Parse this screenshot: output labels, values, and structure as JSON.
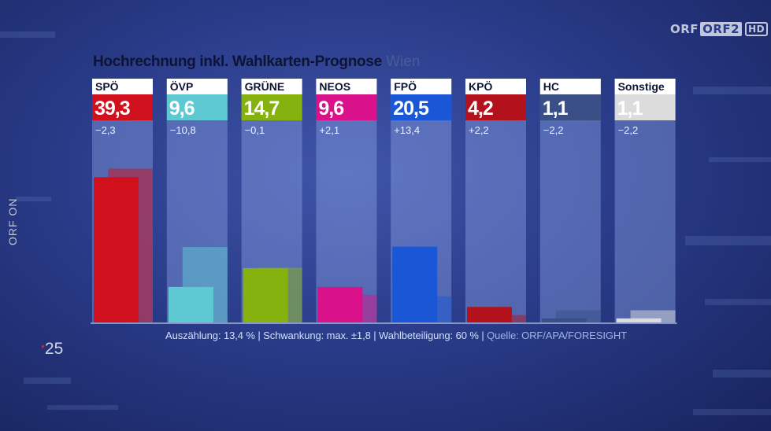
{
  "broadcast": {
    "channel_logo": "ORF2",
    "hd_badge": "HD",
    "side_brand": "ORF ON",
    "year_mark": "25"
  },
  "header": {
    "title": "Hochrechnung inkl. Wahlkarten-Prognose",
    "region": "Wien"
  },
  "footer": {
    "counting": "Auszählung: 13,4 %",
    "fluctuation": "Schwankung: max. ±1,8",
    "turnout": "Wahlbeteiligung: 60 %",
    "separator": "|",
    "source": "Quelle: ORF/APA/FORESIGHT"
  },
  "chart_data": {
    "type": "bar",
    "categories": [
      "SPÖ",
      "ÖVP",
      "GRÜNE",
      "NEOS",
      "FPÖ",
      "KPÖ",
      "HC",
      "Sonstige"
    ],
    "series": [
      {
        "values": [
          39.3,
          9.6,
          14.7,
          9.6,
          20.5,
          4.2,
          1.1,
          1.1
        ]
      },
      {
        "values": [
          41.6,
          20.4,
          14.8,
          7.5,
          7.1,
          2.0,
          3.3,
          3.3
        ]
      }
    ],
    "value_labels": [
      "39,3",
      "9,6",
      "14,7",
      "9,6",
      "20,5",
      "4,2",
      "1,1",
      "1,1"
    ],
    "change_labels": [
      "−2,3",
      "−10,8",
      "−0,1",
      "+2,1",
      "+13,4",
      "+2,2",
      "−2,2",
      "−2,2"
    ],
    "colors": [
      "#d1101e",
      "#5fc9d3",
      "#86b20f",
      "#d9118a",
      "#1a57d6",
      "#b3121c",
      "#3a4f86",
      "#dcdcdc"
    ],
    "value_text_colors": [
      "#ffffff",
      "#ffffff",
      "#ffffff",
      "#ffffff",
      "#ffffff",
      "#ffffff",
      "#ffffff",
      "#ffffff"
    ],
    "ylim": [
      0,
      50
    ]
  }
}
